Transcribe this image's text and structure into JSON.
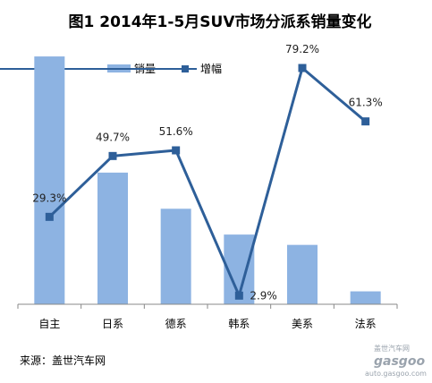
{
  "chart_data": {
    "type": "bar",
    "title": "图1  2014年1-5月SUV市场分派系销量变化",
    "categories": [
      "自主",
      "日系",
      "德系",
      "韩系",
      "美系",
      "法系"
    ],
    "series": [
      {
        "name": "销量",
        "type": "bar",
        "color": "#8db3e2",
        "values": [
          96,
          51,
          37,
          27,
          23,
          5
        ]
      },
      {
        "name": "增幅",
        "type": "line",
        "color": "#2e5f99",
        "values": [
          29.3,
          49.7,
          51.6,
          2.9,
          79.2,
          61.3
        ],
        "labels": [
          "29.3%",
          "49.7%",
          "51.6%",
          "2.9%",
          "79.2%",
          "61.3%"
        ]
      }
    ],
    "y_bar_lim": [
      0,
      104
    ],
    "y_line_lim": [
      0,
      90
    ],
    "grid": false,
    "legend_position": "top-center"
  },
  "source": "来源：盖世汽车网",
  "watermark": {
    "brand": "gasgoo",
    "url": "auto.gasgoo.com",
    "cn": "盖世汽车网"
  }
}
